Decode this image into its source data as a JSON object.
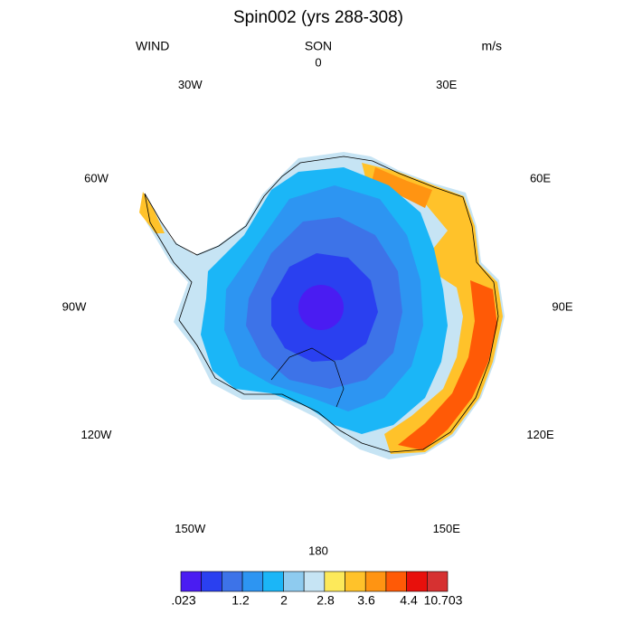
{
  "title": "Spin002 (yrs 288-308)",
  "left_label": "WIND",
  "center_label": "SON",
  "right_label": "m/s",
  "longitude_labels": [
    "0",
    "30E",
    "60E",
    "90E",
    "120E",
    "150E",
    "180",
    "150W",
    "120W",
    "90W",
    "60W",
    "30W"
  ],
  "colorbar": {
    "colors": [
      "#4a1cf2",
      "#2a40f0",
      "#3d73e8",
      "#2d95f2",
      "#1bb6f7",
      "#8ecbef",
      "#c6e4f4",
      "#fde95a",
      "#ffc22a",
      "#ff9412",
      "#ff5a06",
      "#e8100c",
      "#d63131"
    ],
    "labels": [
      ".023",
      "1.2",
      "2",
      "2.8",
      "3.6",
      "4.4",
      "10.703"
    ]
  }
}
